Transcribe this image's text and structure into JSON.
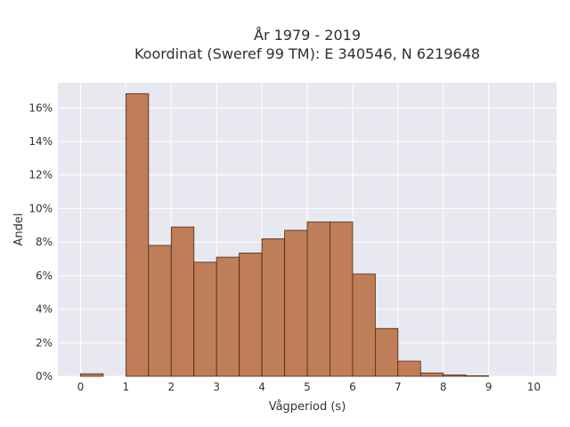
{
  "chart_data": {
    "type": "bar",
    "title_line1": "År 1979 - 2019",
    "title_line2": "Koordinat (Sweref 99 TM): E 340546, N 6219648",
    "xlabel": "Vågperiod (s)",
    "ylabel": "Andel",
    "bin_width": 0.5,
    "bins_start": [
      0,
      0.5,
      1,
      1.5,
      2,
      2.5,
      3,
      3.5,
      4,
      4.5,
      5,
      5.5,
      6,
      6.5,
      7,
      7.5,
      8,
      8.5,
      9,
      9.5
    ],
    "values": [
      0.15,
      0,
      16.85,
      7.8,
      8.9,
      6.8,
      7.1,
      7.35,
      8.2,
      8.7,
      9.2,
      9.2,
      6.1,
      2.85,
      0.9,
      0.2,
      0.08,
      0.03,
      0,
      0
    ],
    "xlim": [
      -0.5,
      10.5
    ],
    "ylim": [
      0,
      17.5
    ],
    "x_ticks": [
      0,
      1,
      2,
      3,
      4,
      5,
      6,
      7,
      8,
      9,
      10
    ],
    "x_tick_labels": [
      "0",
      "1",
      "2",
      "3",
      "4",
      "5",
      "6",
      "7",
      "8",
      "9",
      "10"
    ],
    "y_ticks": [
      0,
      2,
      4,
      6,
      8,
      10,
      12,
      14,
      16
    ],
    "y_tick_labels": [
      "0%",
      "2%",
      "4%",
      "6%",
      "8%",
      "10%",
      "12%",
      "14%",
      "16%"
    ],
    "grid": true,
    "bar_color": "#bf7d58",
    "bar_edge_color": "#4a2a18",
    "plot_background": "#e8e8f0"
  }
}
